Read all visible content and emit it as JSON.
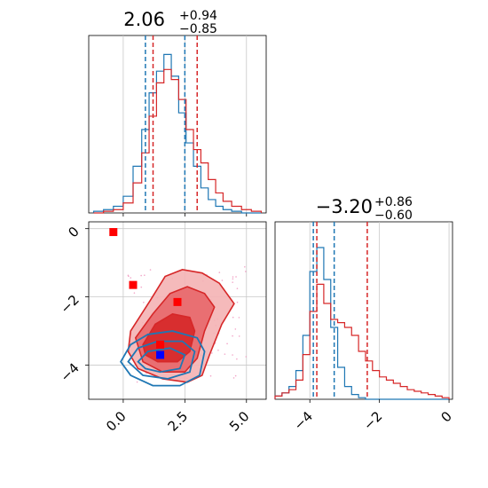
{
  "colors": {
    "blue": "#1f77b4",
    "red": "#d62728",
    "red_fill_dark": "#d62728",
    "red_fill_mid": "#e8676a",
    "red_fill_light": "#f4b3b4",
    "marker_red": "#ff0000",
    "marker_blue": "#0000ff",
    "grid": "#c8c8c8"
  },
  "chart_data": [
    {
      "type": "histogram",
      "panel": "top-left",
      "title": {
        "value": "2.06",
        "upper": "+0.94",
        "lower": "−0.85"
      },
      "xlim": [
        -1.4,
        5.8
      ],
      "grid": true,
      "series": [
        {
          "name": "",
          "color": "#1f77b4",
          "quantiles": [
            0.9,
            2.5
          ]
        },
        {
          "name": "",
          "color": "#d62728",
          "quantiles": [
            1.21,
            3.0
          ]
        }
      ],
      "bins_x": [
        -1.0,
        -0.6,
        -0.2,
        0.2,
        0.6,
        0.9,
        1.2,
        1.5,
        1.8,
        2.1,
        2.4,
        2.7,
        3.0,
        3.3,
        3.6,
        3.9,
        4.2,
        4.6,
        5.0,
        5.4
      ],
      "blue_counts": [
        0.01,
        0.02,
        0.04,
        0.1,
        0.28,
        0.5,
        0.72,
        0.85,
        0.95,
        0.82,
        0.6,
        0.42,
        0.28,
        0.15,
        0.08,
        0.04,
        0.02,
        0.01,
        0.0,
        0.0
      ],
      "red_counts": [
        0.0,
        0.01,
        0.02,
        0.06,
        0.18,
        0.36,
        0.58,
        0.78,
        0.86,
        0.8,
        0.68,
        0.5,
        0.38,
        0.3,
        0.2,
        0.12,
        0.07,
        0.04,
        0.02,
        0.01
      ]
    },
    {
      "type": "scatter",
      "panel": "bottom-left",
      "xlim": [
        -1.4,
        5.8
      ],
      "ylim": [
        -5.0,
        0.2
      ],
      "xticks": [
        "0.0",
        "2.5",
        "5.0"
      ],
      "yticks": [
        "0",
        "−2",
        "−4"
      ],
      "xtick_values": [
        0.0,
        2.5,
        5.0
      ],
      "ytick_values": [
        0,
        -2,
        -4
      ],
      "grid": true,
      "red_contours": [
        {
          "level": "outer",
          "points": [
            [
              0.3,
              -3.0
            ],
            [
              1.1,
              -2.1
            ],
            [
              1.7,
              -1.4
            ],
            [
              2.4,
              -1.2
            ],
            [
              3.2,
              -1.3
            ],
            [
              3.9,
              -1.6
            ],
            [
              4.5,
              -2.2
            ],
            [
              4.0,
              -2.8
            ],
            [
              3.5,
              -3.7
            ],
            [
              3.2,
              -4.3
            ],
            [
              2.6,
              -4.5
            ],
            [
              1.6,
              -4.4
            ],
            [
              0.6,
              -4.1
            ],
            [
              0.2,
              -3.6
            ]
          ]
        },
        {
          "level": "middle",
          "points": [
            [
              0.5,
              -3.2
            ],
            [
              1.2,
              -2.5
            ],
            [
              1.9,
              -1.9
            ],
            [
              2.6,
              -1.7
            ],
            [
              3.3,
              -1.9
            ],
            [
              3.7,
              -2.3
            ],
            [
              3.3,
              -3.0
            ],
            [
              3.0,
              -3.8
            ],
            [
              2.5,
              -4.2
            ],
            [
              1.6,
              -4.2
            ],
            [
              0.8,
              -3.9
            ]
          ]
        },
        {
          "level": "inner",
          "points": [
            [
              0.8,
              -3.4
            ],
            [
              1.3,
              -2.8
            ],
            [
              2.0,
              -2.5
            ],
            [
              2.7,
              -2.6
            ],
            [
              2.9,
              -3.0
            ],
            [
              2.7,
              -3.6
            ],
            [
              2.2,
              -3.9
            ],
            [
              1.4,
              -3.9
            ],
            [
              0.9,
              -3.7
            ]
          ]
        }
      ],
      "blue_contours": [
        {
          "level": "outer",
          "points": [
            [
              -0.1,
              -3.9
            ],
            [
              0.3,
              -3.4
            ],
            [
              1.0,
              -3.1
            ],
            [
              2.0,
              -3.0
            ],
            [
              3.0,
              -3.2
            ],
            [
              3.3,
              -3.6
            ],
            [
              3.1,
              -4.3
            ],
            [
              2.3,
              -4.6
            ],
            [
              1.2,
              -4.6
            ],
            [
              0.3,
              -4.3
            ]
          ]
        },
        {
          "level": "middle",
          "points": [
            [
              0.2,
              -3.9
            ],
            [
              0.6,
              -3.5
            ],
            [
              1.4,
              -3.3
            ],
            [
              2.4,
              -3.3
            ],
            [
              2.9,
              -3.6
            ],
            [
              2.7,
              -4.2
            ],
            [
              1.8,
              -4.4
            ],
            [
              0.8,
              -4.3
            ]
          ]
        },
        {
          "level": "inner",
          "points": [
            [
              0.6,
              -3.9
            ],
            [
              1.0,
              -3.6
            ],
            [
              1.9,
              -3.5
            ],
            [
              2.5,
              -3.7
            ],
            [
              2.3,
              -4.1
            ],
            [
              1.5,
              -4.2
            ],
            [
              0.9,
              -4.1
            ]
          ]
        }
      ],
      "markers": [
        {
          "x": -0.4,
          "y": -0.1,
          "color": "#ff0000"
        },
        {
          "x": 0.4,
          "y": -1.65,
          "color": "#ff0000"
        },
        {
          "x": 2.2,
          "y": -2.15,
          "color": "#ff0000"
        },
        {
          "x": 1.5,
          "y": -3.4,
          "color": "#ff0000"
        },
        {
          "x": 1.5,
          "y": -3.7,
          "color": "#0000ff"
        }
      ]
    },
    {
      "type": "histogram",
      "panel": "bottom-right",
      "title": {
        "value": "−3.20",
        "upper": "+0.86",
        "lower": "−0.60"
      },
      "xlim": [
        -5.0,
        0.1
      ],
      "xticks": [
        "−4",
        "−2",
        "0"
      ],
      "xtick_values": [
        -4,
        -2,
        0
      ],
      "grid": true,
      "series": [
        {
          "name": "",
          "color": "#1f77b4",
          "quantiles": [
            -3.9,
            -3.3
          ]
        },
        {
          "name": "",
          "color": "#d62728",
          "quantiles": [
            -3.8,
            -2.35
          ]
        }
      ],
      "bins_x": [
        -4.9,
        -4.7,
        -4.5,
        -4.3,
        -4.1,
        -3.9,
        -3.7,
        -3.5,
        -3.3,
        -3.1,
        -2.9,
        -2.7,
        -2.5,
        -2.3,
        -2.1,
        -1.9,
        -1.7,
        -1.5,
        -1.3,
        -1.1,
        -0.9,
        -0.7,
        -0.5,
        -0.3,
        -0.1
      ],
      "blue_counts": [
        0.02,
        0.04,
        0.08,
        0.18,
        0.4,
        0.8,
        0.95,
        0.75,
        0.45,
        0.2,
        0.08,
        0.03,
        0.01,
        0.0,
        0.0,
        0.0,
        0.0,
        0.0,
        0.0,
        0.0,
        0.0,
        0.0,
        0.0,
        0.0,
        0.0
      ],
      "red_counts": [
        0.02,
        0.04,
        0.06,
        0.12,
        0.28,
        0.55,
        0.72,
        0.6,
        0.5,
        0.48,
        0.45,
        0.4,
        0.3,
        0.24,
        0.18,
        0.14,
        0.12,
        0.1,
        0.08,
        0.06,
        0.05,
        0.04,
        0.03,
        0.02,
        0.01
      ]
    }
  ]
}
